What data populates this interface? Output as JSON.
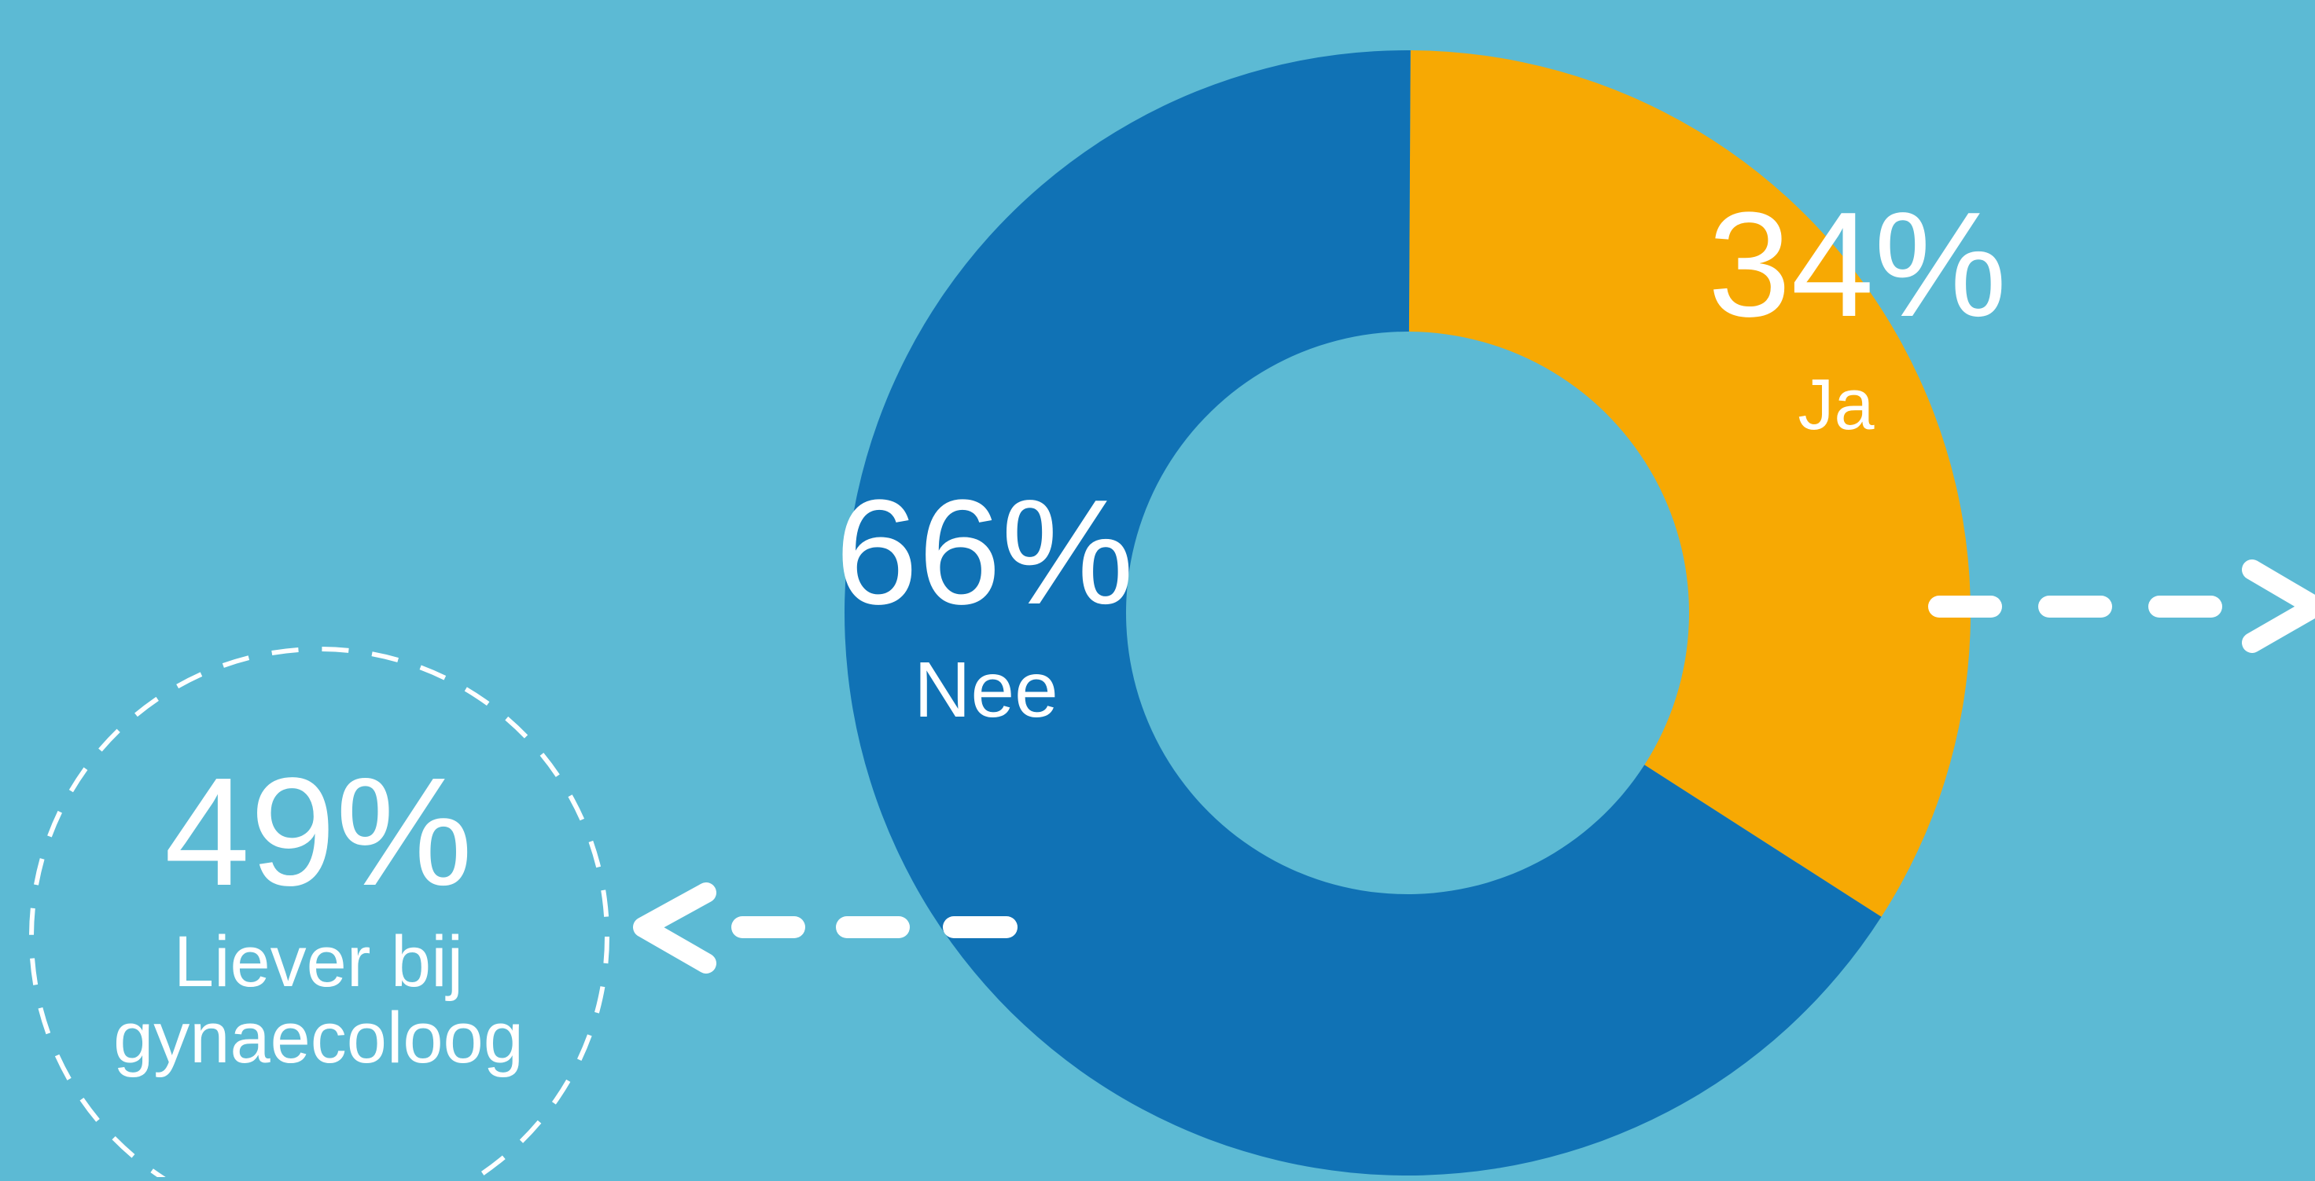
{
  "colors": {
    "background": "#5cbad4",
    "ja": "#f7a903",
    "nee": "#1072b5",
    "text": "#ffffff"
  },
  "chart_data": {
    "type": "pie",
    "donut": true,
    "categories": [
      "Ja",
      "Nee"
    ],
    "values": [
      34,
      66
    ],
    "labels": [
      {
        "category": "Ja",
        "value_text": "34%",
        "name_text": "Ja"
      },
      {
        "category": "Nee",
        "value_text": "66%",
        "name_text": "Nee"
      }
    ]
  },
  "callout": {
    "value_text": "49%",
    "line1": "Liever bij",
    "line2": "gynaecoloog"
  },
  "icons": {
    "left_arrow": "dashed-arrow-left-icon",
    "right_arrow": "dashed-arrow-right-icon",
    "circle": "dashed-circle-icon"
  }
}
